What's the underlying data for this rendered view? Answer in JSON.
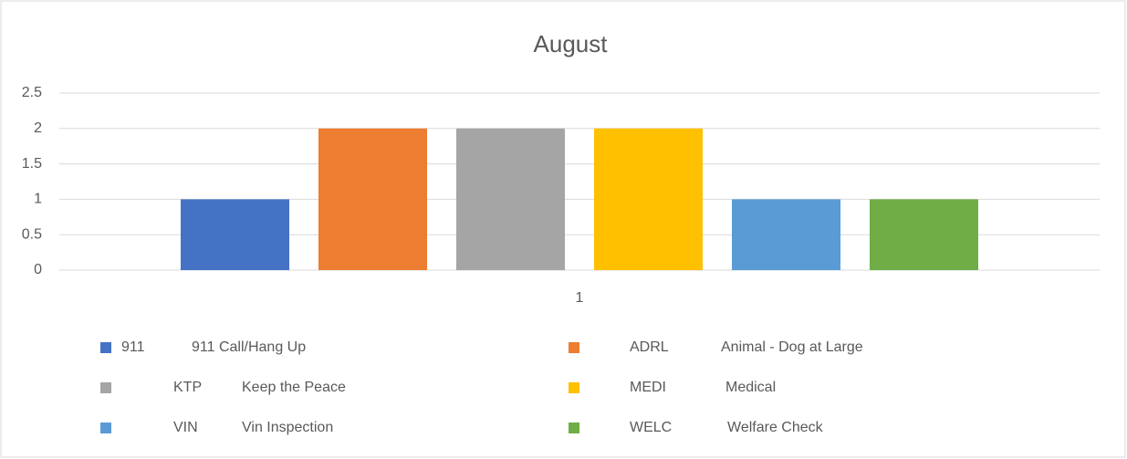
{
  "chart_data": {
    "type": "bar",
    "title": "August",
    "categories": [
      "1"
    ],
    "series": [
      {
        "code": "911",
        "name": "911 Call/Hang Up",
        "color": "#4472c4",
        "values": [
          1
        ]
      },
      {
        "code": "ADRL",
        "name": "Animal - Dog at Large",
        "color": "#ed7d31",
        "values": [
          2
        ]
      },
      {
        "code": "KTP",
        "name": "Keep the Peace",
        "color": "#a5a5a5",
        "values": [
          2
        ]
      },
      {
        "code": "MEDI",
        "name": "Medical",
        "color": "#ffc000",
        "values": [
          2
        ]
      },
      {
        "code": "VIN",
        "name": "Vin Inspection",
        "color": "#5b9bd5",
        "values": [
          1
        ]
      },
      {
        "code": "WELC",
        "name": "Welfare Check",
        "color": "#70ad47",
        "values": [
          1
        ]
      }
    ],
    "ylim": [
      0,
      2.5
    ],
    "yticks": [
      0,
      0.5,
      1,
      1.5,
      2,
      2.5
    ],
    "grid": true,
    "legend": "bottom"
  }
}
